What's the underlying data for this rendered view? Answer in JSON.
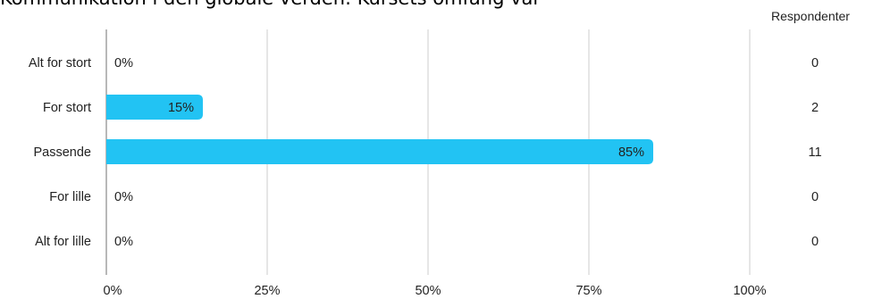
{
  "title": "Kommunikation i den globale verden: Kursets omfang var",
  "respondents_header": "Respondenter",
  "colors": {
    "bar": "#22c3f3",
    "grid": "#cccccc",
    "axis": "#888888",
    "text": "#222222"
  },
  "chart_data": {
    "type": "bar",
    "orientation": "horizontal",
    "categories": [
      "Alt for stort",
      "For stort",
      "Passende",
      "For lille",
      "Alt for lille"
    ],
    "values": [
      0,
      15,
      85,
      0,
      0
    ],
    "value_labels": [
      "0%",
      "15%",
      "85%",
      "0%",
      "0%"
    ],
    "counts": [
      "0",
      "2",
      "11",
      "0",
      "0"
    ],
    "xlim": [
      0,
      100
    ],
    "xticks": [
      0,
      25,
      50,
      75,
      100
    ],
    "xtick_labels": [
      "0%",
      "25%",
      "50%",
      "75%",
      "100%"
    ],
    "grid": true
  }
}
